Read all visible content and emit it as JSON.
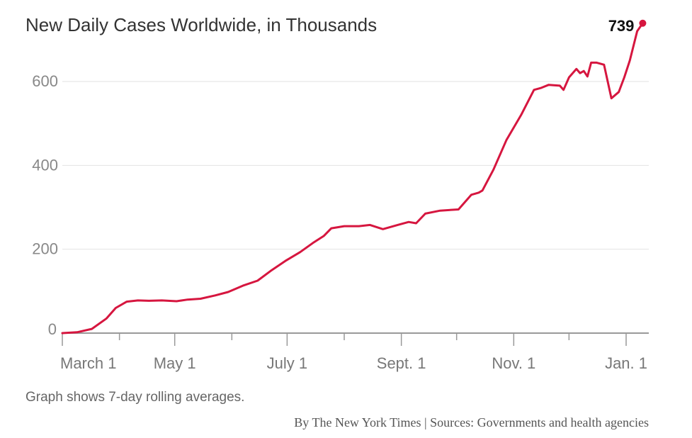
{
  "chart_data": {
    "type": "line",
    "title": "New Daily Cases Worldwide, in Thousands",
    "note": "Graph shows 7-day rolling averages.",
    "credit": "By The New York Times | Sources: Governments and health agencies",
    "xlabel": "",
    "ylabel": "",
    "x_unit": "days since March 1",
    "ylim": [
      0,
      739
    ],
    "yticks": [
      0,
      200,
      400,
      600
    ],
    "ytick_labels": [
      "0",
      "200",
      "400",
      "600"
    ],
    "xticks_days": [
      0,
      31,
      61,
      92,
      122,
      153,
      184,
      214,
      245,
      275,
      306
    ],
    "xtick_labels": [
      {
        "day": 0,
        "label": "March 1"
      },
      {
        "day": 61,
        "label": "May 1"
      },
      {
        "day": 122,
        "label": "July 1"
      },
      {
        "day": 184,
        "label": "Sept. 1"
      },
      {
        "day": 245,
        "label": "Nov. 1"
      },
      {
        "day": 306,
        "label": "Jan. 1"
      }
    ],
    "grid": true,
    "line_color": "#d6163f",
    "last_value_label": "739",
    "series": [
      {
        "name": "New daily cases (thousands)",
        "x": [
          0,
          8,
          16,
          24,
          29,
          35,
          41,
          47,
          54,
          62,
          68,
          75,
          83,
          90,
          98,
          106,
          113,
          121,
          129,
          136,
          142,
          146,
          153,
          161,
          167,
          174,
          182,
          188,
          192,
          197,
          205,
          215,
          222,
          226,
          228,
          234,
          241,
          249,
          256,
          260,
          264,
          270,
          272,
          275,
          279,
          281,
          283,
          285,
          287,
          290,
          294,
          296,
          298,
          302,
          305,
          308,
          312,
          315
        ],
        "y": [
          0,
          2,
          10,
          35,
          60,
          75,
          78,
          77,
          78,
          76,
          80,
          82,
          90,
          98,
          113,
          125,
          148,
          172,
          193,
          215,
          232,
          250,
          255,
          255,
          258,
          248,
          258,
          265,
          262,
          285,
          292,
          295,
          330,
          335,
          340,
          390,
          460,
          520,
          580,
          585,
          592,
          590,
          580,
          610,
          630,
          620,
          625,
          612,
          645,
          645,
          640,
          600,
          560,
          575,
          610,
          650,
          720,
          739
        ]
      }
    ]
  }
}
